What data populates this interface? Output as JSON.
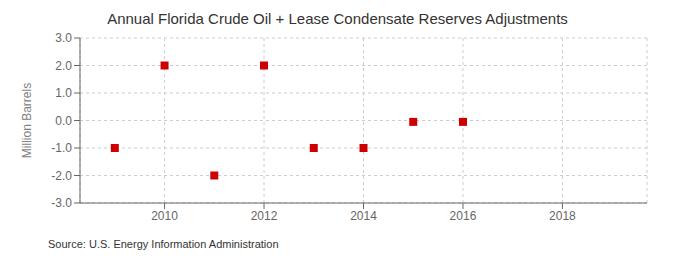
{
  "chart_data": {
    "type": "scatter",
    "title": "Annual Florida Crude Oil + Lease Condensate Reserves Adjustments",
    "y_label": "Million Barrels",
    "annotations": [
      "Source: U.S. Energy Information Administration"
    ],
    "x": [
      2009,
      2010,
      2011,
      2012,
      2013,
      2014,
      2015,
      2016
    ],
    "values": [
      -1.0,
      2.0,
      -2.0,
      2.0,
      -1.0,
      -1.0,
      -0.05,
      -0.05
    ],
    "color": "#cc0000",
    "marker": "square",
    "xlim": [
      2008.3,
      2019.7
    ],
    "xticks": [
      2010,
      2012,
      2014,
      2016,
      2018
    ],
    "ylim": [
      -3.0,
      3.0
    ],
    "yticks": [
      {
        "value": -3.0,
        "label": "-3.0"
      },
      {
        "value": -2.0,
        "label": "-2.0"
      },
      {
        "value": -1.0,
        "label": "-1.0"
      },
      {
        "value": 0.0,
        "label": "0.0"
      },
      {
        "value": 1.0,
        "label": "1.0"
      },
      {
        "value": 2.0,
        "label": "2.0"
      },
      {
        "value": 3.0,
        "label": "3.0"
      }
    ],
    "grid": true
  }
}
